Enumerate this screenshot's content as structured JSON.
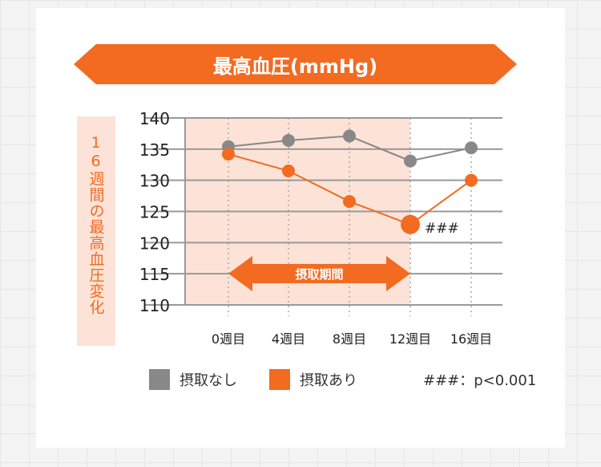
{
  "banner_title": "最高血圧(mmHg)",
  "y_side_label": "16週間の最高血圧変化",
  "chart_data": {
    "type": "line",
    "title": "最高血圧(mmHg)",
    "ylabel": "16週間の最高血圧変化",
    "categories": [
      "0週目",
      "4週目",
      "8週目",
      "12週目",
      "16週目"
    ],
    "yticks": [
      140,
      135,
      130,
      125,
      120,
      115,
      110
    ],
    "ylim": [
      110,
      140
    ],
    "grid": true,
    "series": [
      {
        "name": "摂取なし",
        "color": "#888888",
        "values": [
          135.4,
          136.4,
          137.1,
          133.1,
          135.2
        ]
      },
      {
        "name": "摂取あり",
        "color": "#f26b21",
        "values": [
          134.2,
          131.5,
          126.6,
          122.9,
          130.0
        ]
      }
    ],
    "shaded_period": {
      "label": "摂取期間",
      "from": "0週目",
      "to": "12週目",
      "color": "#fde3d7"
    },
    "annotation": {
      "text": "###",
      "category": "12週目",
      "series": "摂取あり"
    },
    "legend_placement": "bottom",
    "footnote": "###：p<0.001"
  }
}
